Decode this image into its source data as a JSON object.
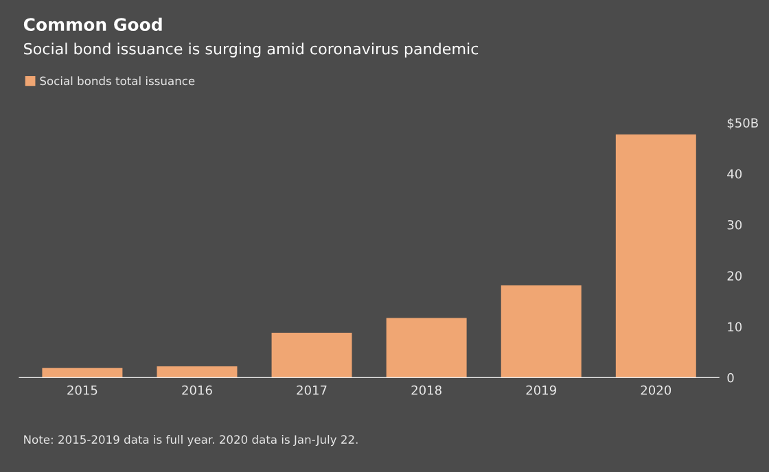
{
  "chart_data": {
    "type": "bar",
    "title": "Common Good",
    "subtitle": "Social bond issuance is surging amid coronavirus pandemic",
    "categories": [
      "2015",
      "2016",
      "2017",
      "2018",
      "2019",
      "2020"
    ],
    "series": [
      {
        "name": "Social bonds total issuance",
        "color": "#f0a673",
        "values": [
          1.9,
          2.2,
          8.8,
          11.7,
          18.1,
          47.7
        ]
      }
    ],
    "ylim": [
      0,
      50
    ],
    "yticks": [
      0,
      10,
      20,
      30,
      40,
      {
        "value": 50,
        "label": "$50B"
      }
    ],
    "grid": false,
    "legend": "top left",
    "annotations": [
      "Note: 2015-2019 data is full year. 2020 data is Jan-July 22."
    ]
  }
}
